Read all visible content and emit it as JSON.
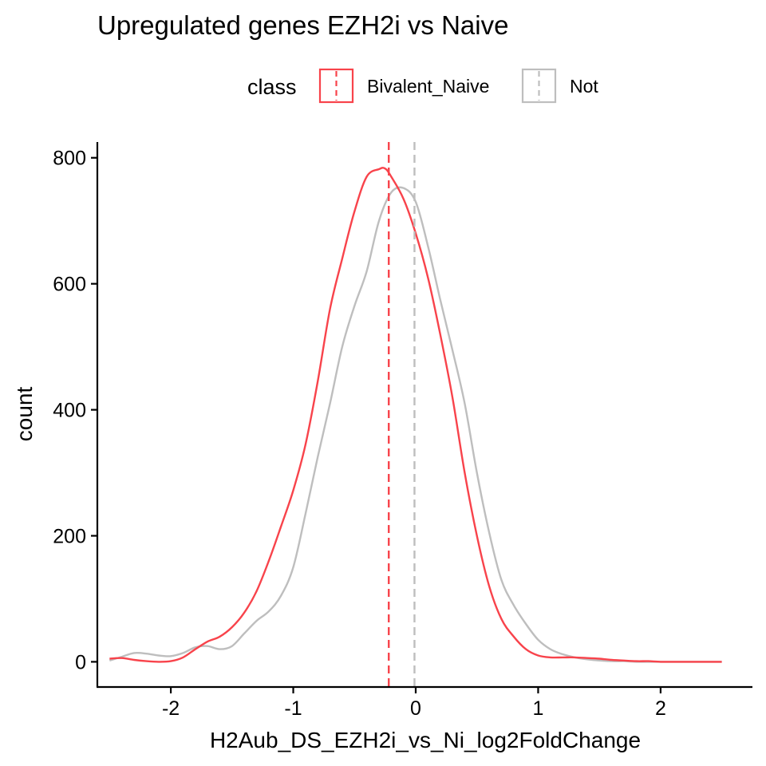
{
  "chart_data": {
    "type": "line",
    "title": "Upregulated genes EZH2i vs Naive",
    "xlabel": "H2Aub_DS_EZH2i_vs_Ni_log2FoldChange",
    "ylabel": "count",
    "xlim": [
      -2.6,
      2.75
    ],
    "ylim": [
      -40,
      825
    ],
    "x_ticks": [
      -2,
      -1,
      0,
      1,
      2
    ],
    "x_tick_labels": [
      "-2",
      "-1",
      "0",
      "1",
      "2"
    ],
    "y_ticks": [
      0,
      200,
      400,
      600,
      800
    ],
    "y_tick_labels": [
      "0",
      "200",
      "400",
      "600",
      "800"
    ],
    "grid": false,
    "legend": {
      "title": "class",
      "placement": "top",
      "entries": [
        "Bivalent_Naive",
        "Not"
      ]
    },
    "series": [
      {
        "name": "Bivalent_Naive",
        "color": "#F8434B",
        "x": [
          -2.5,
          -2.4,
          -2.3,
          -2.2,
          -2.1,
          -2.0,
          -1.9,
          -1.8,
          -1.7,
          -1.6,
          -1.5,
          -1.4,
          -1.3,
          -1.2,
          -1.1,
          -1.0,
          -0.9,
          -0.8,
          -0.7,
          -0.6,
          -0.5,
          -0.4,
          -0.3,
          -0.25,
          -0.2,
          -0.1,
          0.0,
          0.1,
          0.2,
          0.3,
          0.4,
          0.5,
          0.6,
          0.7,
          0.8,
          0.9,
          1.0,
          1.1,
          1.2,
          1.3,
          1.4,
          1.5,
          1.6,
          1.7,
          1.8,
          1.9,
          2.0,
          2.1,
          2.2,
          2.3,
          2.4,
          2.5
        ],
        "y": [
          5,
          6,
          3,
          1,
          0,
          1,
          7,
          20,
          32,
          40,
          55,
          78,
          112,
          160,
          215,
          272,
          345,
          445,
          560,
          640,
          715,
          770,
          782,
          783,
          770,
          735,
          680,
          610,
          520,
          420,
          300,
          200,
          120,
          68,
          40,
          20,
          10,
          7,
          7,
          7,
          6,
          5,
          3,
          2,
          1,
          1,
          0,
          0,
          0,
          0,
          0,
          0
        ],
        "mean_line_x": -0.22
      },
      {
        "name": "Not",
        "color": "#BEBEBE",
        "x": [
          -2.5,
          -2.4,
          -2.3,
          -2.2,
          -2.1,
          -2.0,
          -1.9,
          -1.8,
          -1.7,
          -1.6,
          -1.5,
          -1.4,
          -1.3,
          -1.2,
          -1.1,
          -1.0,
          -0.9,
          -0.8,
          -0.7,
          -0.6,
          -0.5,
          -0.4,
          -0.3,
          -0.2,
          -0.1,
          0.0,
          0.1,
          0.2,
          0.3,
          0.4,
          0.5,
          0.6,
          0.7,
          0.8,
          0.9,
          1.0,
          1.1,
          1.2,
          1.3,
          1.4,
          1.5,
          1.6,
          1.7,
          1.8,
          1.9,
          2.0,
          2.1,
          2.2,
          2.3,
          2.4,
          2.5
        ],
        "y": [
          2,
          8,
          14,
          13,
          10,
          9,
          14,
          23,
          25,
          20,
          25,
          45,
          65,
          80,
          105,
          150,
          235,
          325,
          410,
          500,
          565,
          620,
          700,
          745,
          752,
          730,
          660,
          575,
          495,
          410,
          300,
          205,
          130,
          90,
          60,
          35,
          20,
          12,
          7,
          4,
          2,
          1,
          1,
          0,
          0,
          0,
          0,
          0,
          0,
          0,
          0
        ],
        "mean_line_x": -0.01
      }
    ]
  }
}
